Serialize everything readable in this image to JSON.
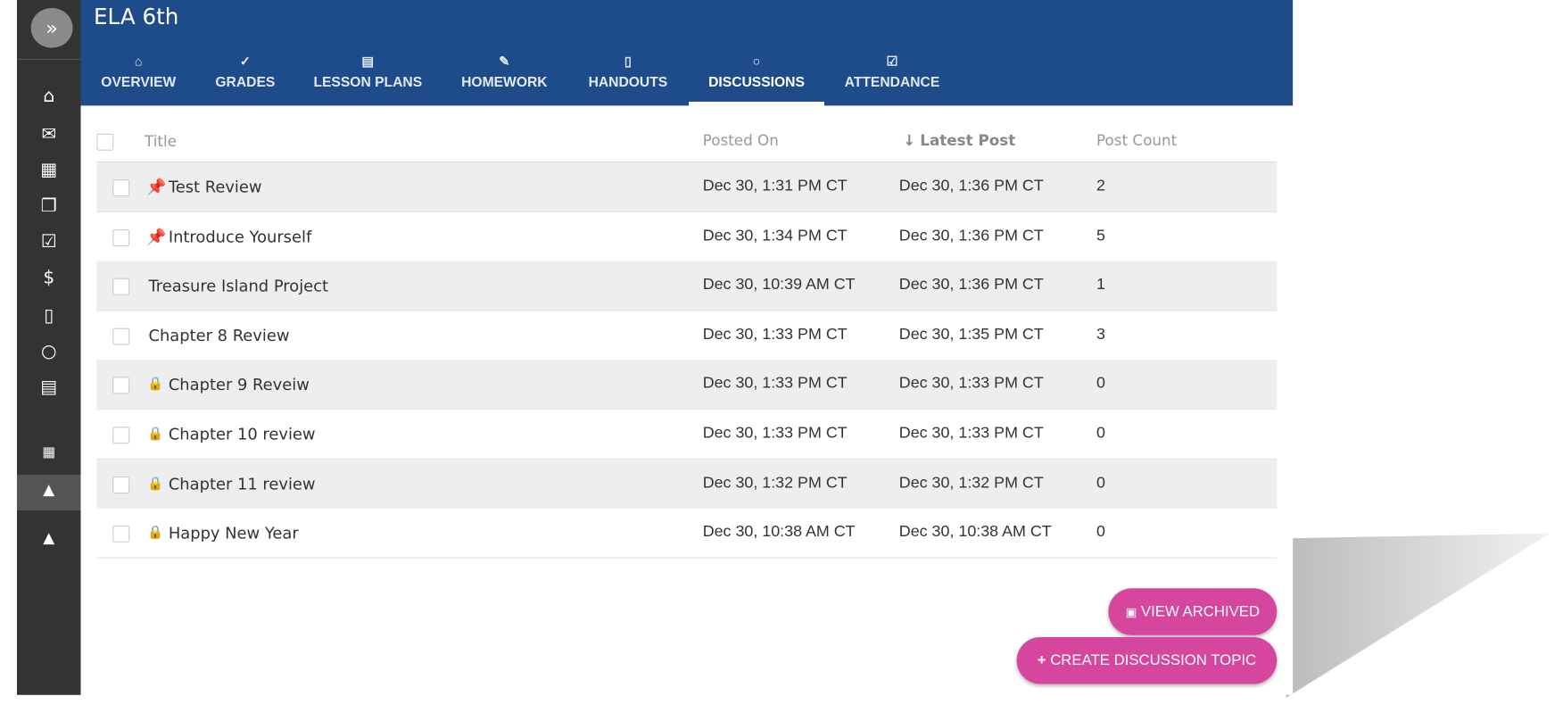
{
  "header": {
    "title": "ELA 6th"
  },
  "tabs": [
    "OVERVIEW",
    "GRADES",
    "LESSON PLANS",
    "HOMEWORK",
    "HANDOUTS",
    "DISCUSSIONS",
    "ATTENDANCE"
  ],
  "table": {
    "columns": [
      "Title",
      "Posted On",
      "Latest Post",
      "Post Count"
    ],
    "rows": [
      [
        "Test Review",
        "Dec 30, 1:31 PM CT",
        "Dec 30, 1:36 PM CT",
        2
      ],
      [
        "Introduce Yourself",
        "Dec 30, 1:34 PM CT",
        "Dec 30, 1:36 PM CT",
        5
      ],
      [
        "Treasure Island Project",
        "Dec 30, 10:39 AM CT",
        "Dec 30, 1:36 PM CT",
        1
      ],
      [
        "Chapter 8 Review",
        "Dec 30, 1:33 PM CT",
        "Dec 30, 1:35 PM CT",
        3
      ],
      [
        "Chapter 9 Reveiw",
        "Dec 30, 1:33 PM CT",
        "Dec 30, 1:33 PM CT",
        0
      ],
      [
        "Chapter 10 review",
        "Dec 30, 1:33 PM CT",
        "Dec 30, 1:33 PM CT",
        0
      ],
      [
        "Chapter 11 review",
        "Dec 30, 1:32 PM CT",
        "Dec 30, 1:32 PM CT",
        0
      ],
      [
        "Happy New Year",
        "Dec 30, 10:38 AM CT",
        "Dec 30, 10:38 AM CT",
        0
      ]
    ]
  },
  "buttons": [
    "VIEW ARCHIVED",
    "CREATE DISCUSSION TOPIC"
  ]
}
